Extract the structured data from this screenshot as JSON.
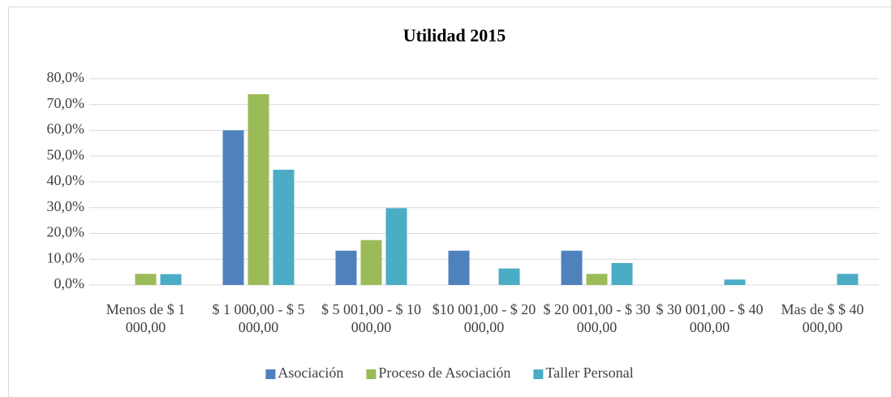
{
  "chart_data": {
    "type": "bar",
    "title": "Utilidad 2015",
    "categories": [
      "Menos de $ 1 000,00",
      "$ 1 000,00 - $ 5 000,00",
      "$ 5 001,00 - $ 10 000,00",
      "$10 001,00 - $ 20 000,00",
      "$ 20 001,00 - $ 30 000,00",
      "$ 30 001,00 - $ 40 000,00",
      "Mas de $ $ 40 000,00"
    ],
    "series": [
      {
        "name": "Asociación",
        "color": "#4f81bd",
        "values": [
          0,
          60.0,
          13.3,
          13.3,
          13.3,
          0,
          0
        ]
      },
      {
        "name": "Proceso de Asociación",
        "color": "#9bbb59",
        "values": [
          4.3,
          74.0,
          17.4,
          0,
          4.3,
          0,
          0
        ]
      },
      {
        "name": "Taller Personal",
        "color": "#4bacc6",
        "values": [
          4.2,
          44.7,
          29.8,
          6.4,
          8.5,
          2.1,
          4.3
        ]
      }
    ],
    "ylim": [
      0,
      80
    ],
    "yticks": [
      {
        "value": 0,
        "label": "0,0%"
      },
      {
        "value": 10,
        "label": "10,0%"
      },
      {
        "value": 20,
        "label": "20,0%"
      },
      {
        "value": 30,
        "label": "30,0%"
      },
      {
        "value": 40,
        "label": "40,0%"
      },
      {
        "value": 50,
        "label": "50,0%"
      },
      {
        "value": 60,
        "label": "60,0%"
      },
      {
        "value": 70,
        "label": "70,0%"
      },
      {
        "value": 80,
        "label": "80,0%"
      }
    ],
    "grid": true,
    "legend": "bottom"
  }
}
